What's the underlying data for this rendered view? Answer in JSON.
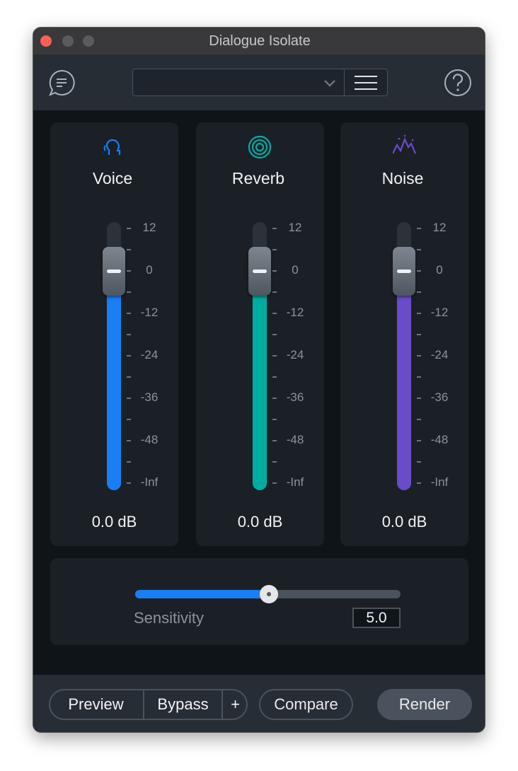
{
  "window": {
    "title": "Dialogue Isolate"
  },
  "channels": [
    {
      "name": "Voice",
      "value": "0.0 dB",
      "color": "#1a7ef5"
    },
    {
      "name": "Reverb",
      "value": "0.0 dB",
      "color": "#00ada3"
    },
    {
      "name": "Noise",
      "value": "0.0 dB",
      "color": "#6a4cc9"
    }
  ],
  "scale": [
    "12",
    "0",
    "-12",
    "-24",
    "-36",
    "-48",
    "-Inf"
  ],
  "sensitivity": {
    "label": "Sensitivity",
    "value": "5.0"
  },
  "buttons": {
    "preview": "Preview",
    "bypass": "Bypass",
    "plus": "+",
    "compare": "Compare",
    "render": "Render"
  }
}
